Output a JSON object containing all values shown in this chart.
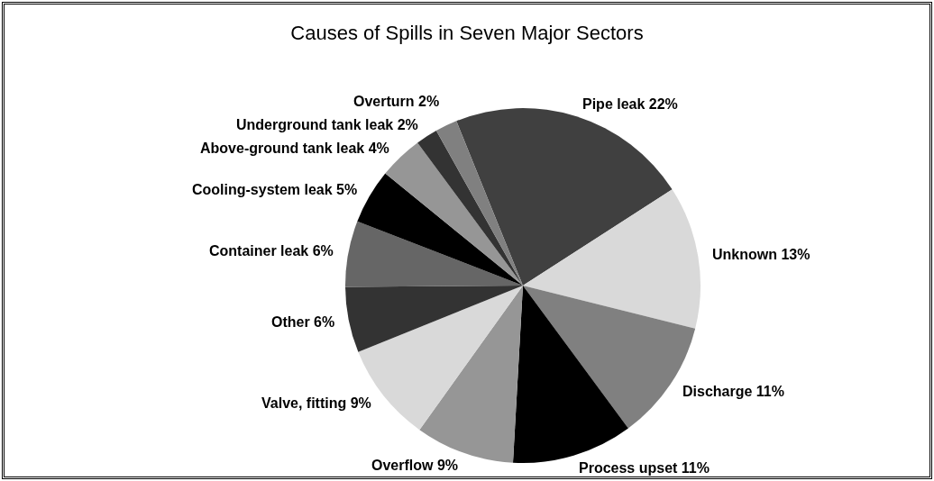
{
  "chart_data": {
    "type": "pie",
    "title": "Causes of Spills in Seven Major Sectors",
    "categories": [
      "Pipe leak",
      "Unknown",
      "Discharge",
      "Process upset",
      "Overflow",
      "Valve, fitting",
      "Other",
      "Container leak",
      "Cooling-system leak",
      "Above-ground tank leak",
      "Underground tank leak",
      "Overturn"
    ],
    "values": [
      22,
      13,
      11,
      11,
      9,
      9,
      6,
      6,
      5,
      4,
      2,
      2
    ],
    "value_labels": [
      "22%",
      "13%",
      "11%",
      "11%",
      "9%",
      "9%",
      "6%",
      "6%",
      "5%",
      "4%",
      "2%",
      "2%"
    ],
    "colors": [
      "#404040",
      "#d9d9d9",
      "#808080",
      "#000000",
      "#969696",
      "#d9d9d9",
      "#333333",
      "#666666",
      "#000000",
      "#969696",
      "#333333",
      "#808080"
    ],
    "legend": false
  }
}
